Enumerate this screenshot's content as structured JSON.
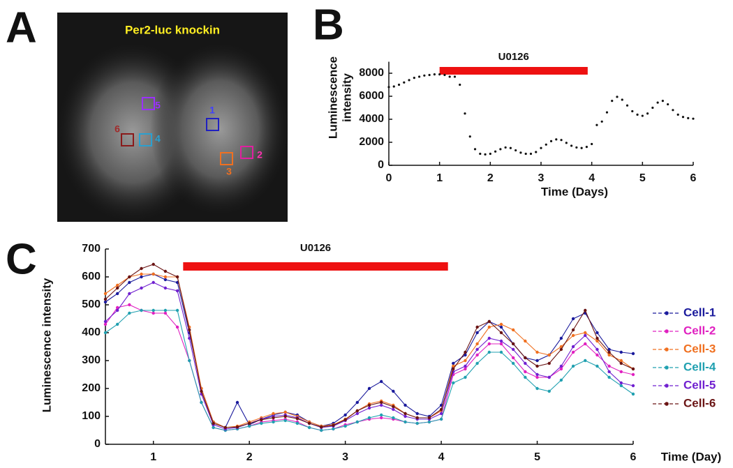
{
  "image_panel": {
    "panel_label": "A",
    "title": "Per2-luc knockin",
    "roi_labels": [
      "1",
      "2",
      "3",
      "4",
      "5",
      "6"
    ]
  },
  "chart_data": [
    {
      "type": "scatter",
      "panel_label": "B",
      "ylabel": [
        "Luminescence",
        "intensity"
      ],
      "xlabel": "Time (Days)",
      "annotation": {
        "label": "U0126",
        "start": 1.0,
        "end": 3.92,
        "color": "#ee1111"
      },
      "color": "#111111",
      "x": [
        0,
        0.1,
        0.2,
        0.3,
        0.4,
        0.5,
        0.6,
        0.7,
        0.8,
        0.9,
        1.0,
        1.1,
        1.2,
        1.3,
        1.4,
        1.5,
        1.6,
        1.7,
        1.8,
        1.9,
        2.0,
        2.1,
        2.2,
        2.3,
        2.4,
        2.5,
        2.6,
        2.7,
        2.8,
        2.9,
        3.0,
        3.1,
        3.2,
        3.3,
        3.4,
        3.5,
        3.6,
        3.7,
        3.8,
        3.9,
        4.0,
        4.1,
        4.2,
        4.3,
        4.4,
        4.5,
        4.6,
        4.7,
        4.8,
        4.9,
        5.0,
        5.1,
        5.2,
        5.3,
        5.4,
        5.5,
        5.6,
        5.7,
        5.8,
        5.9,
        6.0
      ],
      "values": [
        6800,
        6850,
        7000,
        7200,
        7400,
        7600,
        7700,
        7800,
        7850,
        7900,
        7900,
        7850,
        7700,
        7700,
        7000,
        4500,
        2500,
        1400,
        1000,
        950,
        1000,
        1200,
        1400,
        1550,
        1500,
        1300,
        1100,
        1000,
        1000,
        1150,
        1500,
        1800,
        2100,
        2250,
        2200,
        1950,
        1700,
        1550,
        1500,
        1600,
        1850,
        3500,
        3800,
        4600,
        5600,
        5950,
        5700,
        5200,
        4700,
        4400,
        4300,
        4500,
        5000,
        5450,
        5600,
        5300,
        4800,
        4400,
        4200,
        4100,
        4050
      ],
      "xlim": [
        0,
        6
      ],
      "ylim": [
        0,
        9000
      ],
      "xticks": [
        0,
        1,
        2,
        3,
        4,
        5,
        6
      ],
      "yticks": [
        0,
        2000,
        4000,
        6000,
        8000
      ]
    },
    {
      "type": "line",
      "panel_label": "C",
      "ylabel": "Luminescence intensity",
      "xlabel": "Time (Day)",
      "annotation": {
        "label": "U0126",
        "start": 1.31,
        "end": 4.07,
        "color": "#ee1111"
      },
      "x": [
        0.5,
        0.625,
        0.75,
        0.875,
        1.0,
        1.125,
        1.25,
        1.375,
        1.5,
        1.625,
        1.75,
        1.875,
        2.0,
        2.125,
        2.25,
        2.375,
        2.5,
        2.625,
        2.75,
        2.875,
        3.0,
        3.125,
        3.25,
        3.375,
        3.5,
        3.625,
        3.75,
        3.875,
        4.0,
        4.125,
        4.25,
        4.375,
        4.5,
        4.625,
        4.75,
        4.875,
        5.0,
        5.125,
        5.25,
        5.375,
        5.5,
        5.625,
        5.75,
        5.875,
        6.0
      ],
      "series": [
        {
          "name": "Cell-1",
          "color": "#1a1a9c",
          "values": [
            510,
            540,
            580,
            600,
            610,
            590,
            580,
            400,
            200,
            80,
            60,
            150,
            70,
            90,
            105,
            115,
            105,
            80,
            65,
            75,
            105,
            150,
            200,
            225,
            190,
            140,
            110,
            100,
            140,
            290,
            320,
            400,
            440,
            420,
            360,
            310,
            300,
            320,
            380,
            450,
            470,
            400,
            340,
            330,
            325
          ]
        },
        {
          "name": "Cell-2",
          "color": "#e020c0",
          "values": [
            430,
            490,
            500,
            480,
            470,
            470,
            420,
            300,
            150,
            60,
            50,
            55,
            65,
            80,
            85,
            90,
            80,
            60,
            50,
            55,
            70,
            80,
            90,
            95,
            90,
            80,
            75,
            80,
            90,
            250,
            270,
            320,
            360,
            360,
            310,
            260,
            240,
            240,
            270,
            330,
            360,
            320,
            280,
            260,
            250
          ]
        },
        {
          "name": "Cell-3",
          "color": "#f07020",
          "values": [
            540,
            570,
            600,
            610,
            610,
            600,
            600,
            420,
            200,
            80,
            60,
            65,
            80,
            95,
            110,
            115,
            100,
            80,
            65,
            70,
            90,
            120,
            145,
            155,
            140,
            110,
            95,
            95,
            120,
            280,
            300,
            360,
            420,
            430,
            410,
            370,
            330,
            320,
            350,
            390,
            400,
            370,
            320,
            300,
            270
          ]
        },
        {
          "name": "Cell-4",
          "color": "#20a0b0",
          "values": [
            400,
            430,
            470,
            480,
            480,
            480,
            480,
            300,
            150,
            60,
            50,
            55,
            65,
            75,
            80,
            85,
            75,
            60,
            50,
            55,
            65,
            80,
            95,
            105,
            95,
            80,
            75,
            80,
            90,
            220,
            240,
            290,
            330,
            330,
            290,
            240,
            200,
            190,
            230,
            280,
            300,
            280,
            240,
            210,
            180
          ]
        },
        {
          "name": "Cell-5",
          "color": "#7020d0",
          "values": [
            440,
            480,
            540,
            560,
            580,
            560,
            550,
            380,
            180,
            70,
            55,
            60,
            75,
            90,
            100,
            105,
            95,
            75,
            60,
            65,
            85,
            110,
            130,
            140,
            125,
            100,
            90,
            90,
            110,
            260,
            280,
            340,
            380,
            370,
            340,
            290,
            250,
            240,
            280,
            350,
            390,
            340,
            260,
            220,
            210
          ]
        },
        {
          "name": "Cell-6",
          "color": "#6a1414",
          "values": [
            520,
            560,
            600,
            630,
            645,
            620,
            600,
            410,
            190,
            75,
            60,
            62,
            75,
            88,
            95,
            100,
            92,
            75,
            62,
            68,
            88,
            120,
            140,
            150,
            135,
            110,
            95,
            95,
            125,
            270,
            330,
            420,
            440,
            400,
            360,
            310,
            280,
            290,
            340,
            410,
            480,
            380,
            330,
            290,
            270
          ]
        }
      ],
      "xlim": [
        0.5,
        6
      ],
      "ylim": [
        0,
        700
      ],
      "xticks": [
        1,
        2,
        3,
        4,
        5,
        6
      ],
      "yticks": [
        0,
        100,
        200,
        300,
        400,
        500,
        600,
        700
      ]
    }
  ]
}
